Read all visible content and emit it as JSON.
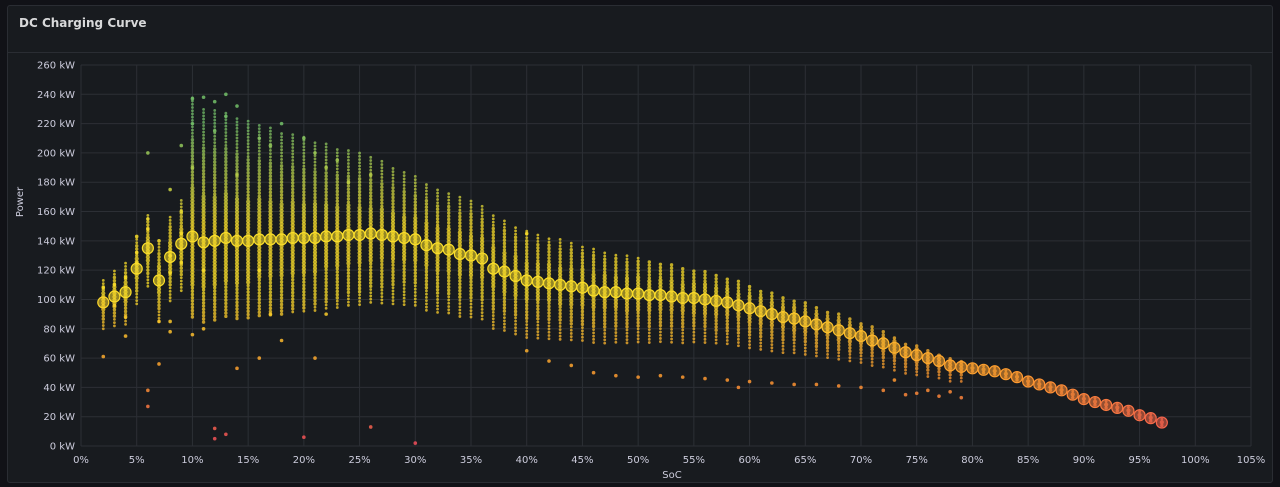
{
  "panel": {
    "title": "DC Charging Curve"
  },
  "chart_data": {
    "type": "scatter",
    "title": "DC Charging Curve",
    "xlabel": "SoC",
    "ylabel": "Power",
    "xlim": [
      0,
      105
    ],
    "ylim": [
      0,
      260
    ],
    "x_ticks": [
      0,
      5,
      10,
      15,
      20,
      25,
      30,
      35,
      40,
      45,
      50,
      55,
      60,
      65,
      70,
      75,
      80,
      85,
      90,
      95,
      100,
      105
    ],
    "x_tick_labels": [
      "0%",
      "5%",
      "10%",
      "15%",
      "20%",
      "25%",
      "30%",
      "35%",
      "40%",
      "45%",
      "50%",
      "55%",
      "60%",
      "65%",
      "70%",
      "75%",
      "80%",
      "85%",
      "90%",
      "95%",
      "100%",
      "105%"
    ],
    "y_ticks": [
      0,
      20,
      40,
      60,
      80,
      100,
      120,
      140,
      160,
      180,
      200,
      220,
      240,
      260
    ],
    "y_tick_labels": [
      "0 kW",
      "20 kW",
      "40 kW",
      "60 kW",
      "80 kW",
      "100 kW",
      "120 kW",
      "140 kW",
      "160 kW",
      "180 kW",
      "200 kW",
      "220 kW",
      "240 kW",
      "260 kW"
    ],
    "grid": true,
    "legend": "none",
    "color_scale": {
      "high": "#73bf69",
      "mid": "#fade2a",
      "low_mid": "#ff9830",
      "low": "#f2495c"
    },
    "average_curve": {
      "x": [
        2,
        3,
        4,
        5,
        6,
        7,
        8,
        9,
        10,
        11,
        12,
        13,
        14,
        15,
        16,
        17,
        18,
        19,
        20,
        21,
        22,
        23,
        24,
        25,
        26,
        27,
        28,
        29,
        30,
        31,
        32,
        33,
        34,
        35,
        36,
        37,
        38,
        39,
        40,
        41,
        42,
        43,
        44,
        45,
        46,
        47,
        48,
        49,
        50,
        51,
        52,
        53,
        54,
        55,
        56,
        57,
        58,
        59,
        60,
        61,
        62,
        63,
        64,
        65,
        66,
        67,
        68,
        69,
        70,
        71,
        72,
        73,
        74,
        75,
        76,
        77,
        78,
        79,
        80,
        81,
        82,
        83,
        84,
        85,
        86,
        87,
        88,
        89,
        90,
        91,
        92,
        93,
        94,
        95,
        96,
        97
      ],
      "y": [
        98,
        102,
        105,
        121,
        135,
        113,
        129,
        138,
        143,
        139,
        140,
        142,
        140,
        140,
        141,
        141,
        141,
        142,
        142,
        142,
        143,
        143,
        144,
        144,
        145,
        144,
        143,
        142,
        141,
        137,
        135,
        134,
        131,
        130,
        128,
        121,
        119,
        116,
        113,
        112,
        111,
        110,
        109,
        108,
        106,
        105,
        105,
        104,
        104,
        103,
        103,
        102,
        101,
        101,
        100,
        99,
        98,
        96,
        94,
        92,
        90,
        88,
        87,
        85,
        83,
        81,
        79,
        77,
        75,
        72,
        70,
        67,
        64,
        62,
        60,
        58,
        55,
        54,
        53,
        52,
        51,
        49,
        47,
        44,
        42,
        40,
        38,
        35,
        32,
        30,
        28,
        26,
        24,
        21,
        19,
        16
      ]
    },
    "scatter_points": {
      "x": [
        2,
        2,
        3,
        3,
        4,
        4,
        4,
        5,
        5,
        5,
        6,
        6,
        6,
        6,
        6,
        7,
        7,
        7,
        8,
        8,
        8,
        8,
        8,
        9,
        9,
        9,
        9,
        10,
        10,
        10,
        10,
        11,
        11,
        11,
        12,
        12,
        12,
        12,
        13,
        13,
        13,
        14,
        14,
        14,
        16,
        16,
        16,
        17,
        17,
        18,
        18,
        20,
        20,
        21,
        21,
        22,
        22,
        23,
        24,
        26,
        26,
        30,
        40,
        40,
        42,
        44,
        46,
        48,
        50,
        52,
        54,
        56,
        58,
        59,
        60,
        62,
        64,
        66,
        68,
        70,
        72,
        73,
        74,
        75,
        76,
        77,
        78,
        79
      ],
      "y": [
        108,
        61,
        96,
        110,
        88,
        115,
        75,
        125,
        132,
        143,
        155,
        148,
        200,
        38,
        27,
        140,
        85,
        56,
        175,
        130,
        85,
        78,
        118,
        205,
        160,
        145,
        125,
        237,
        220,
        190,
        76,
        238,
        120,
        80,
        215,
        235,
        12,
        5,
        240,
        225,
        8,
        232,
        53,
        185,
        210,
        120,
        60,
        205,
        90,
        220,
        72,
        210,
        6,
        200,
        60,
        190,
        90,
        195,
        180,
        185,
        13,
        2,
        145,
        65,
        58,
        55,
        50,
        48,
        47,
        48,
        47,
        46,
        45,
        40,
        44,
        43,
        42,
        42,
        41,
        40,
        38,
        45,
        35,
        36,
        38,
        34,
        37,
        33
      ]
    }
  }
}
